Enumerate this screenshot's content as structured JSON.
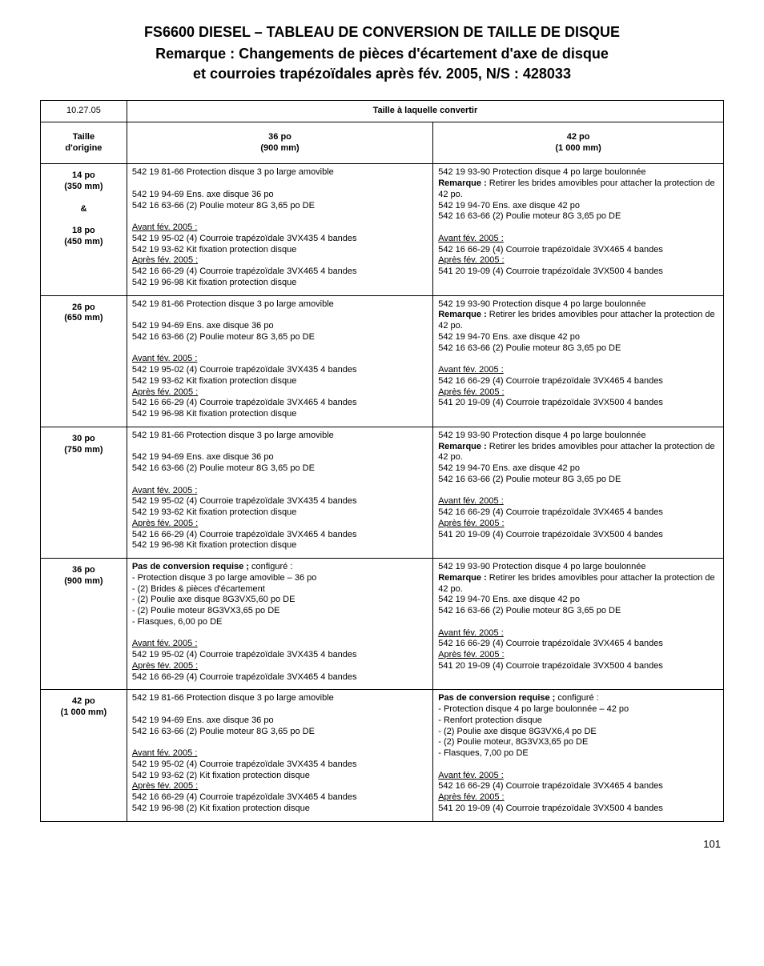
{
  "meta": {
    "title": "FS6600 DIESEL – TABLEAU DE CONVERSION DE TAILLE DE DISQUE",
    "subtitle1": "Remarque : Changements de pièces d'écartement d'axe de disque",
    "subtitle2": "et courroies trapézoïdales après fév. 2005, N/S : 428033",
    "date": "10.27.05",
    "convert_header": "Taille à laquelle convertir",
    "size_header": "Taille\nd'origine",
    "col36_header": "36 po\n(900 mm)",
    "col42_header": "42 po\n(1 000 mm)",
    "page_number": "101"
  },
  "labels": {
    "avant": "Avant fév. 2005 :",
    "apres": "Après fév. 2005 :",
    "remarque_retirer": "Remarque : ",
    "remarque_retirer_text": "Retirer les brides amovibles pour attacher la protection de 42 po.",
    "pas_conv": "Pas de conversion requise ; ",
    "pas_conv_cfg": "configuré :",
    "pas_conv42_cfg": "configuré :"
  },
  "rows": [
    {
      "size": "14 po\n(350 mm)\n\n&\n\n18 po\n(450 mm)",
      "c36": {
        "l1": "542 19 81-66 Protection disque 3 po large amovible",
        "l3": "542 19 94-69 Ens. axe disque 36 po",
        "l4": "542 16 63-66 (2) Poulie moteur 8G 3,65 po DE",
        "a1": "542 19 95-02 (4) Courroie trapézoïdale 3VX435 4 bandes",
        "a2": "542 19 93-62 Kit fixation protection disque",
        "p1": "542 16 66-29 (4) Courroie trapézoïdale 3VX465 4 bandes",
        "p2": "542 19 96-98 Kit fixation protection disque"
      },
      "c42": {
        "l1": "542 19 93-90 Protection disque 4 po large boulonnée",
        "l3": "542 19 94-70 Ens. axe disque 42 po",
        "l4": "542 16 63-66 (2) Poulie moteur 8G 3,65 po DE",
        "a1": "542 16 66-29 (4) Courroie trapézoïdale 3VX465 4 bandes",
        "p1": "541 20 19-09 (4) Courroie trapézoïdale 3VX500 4 bandes"
      }
    },
    {
      "size": "26 po\n(650 mm)",
      "c36": {
        "l1": "542 19 81-66 Protection disque 3 po large amovible",
        "l3": "542 19 94-69 Ens. axe disque 36 po",
        "l4": "542 16 63-66 (2) Poulie moteur 8G 3,65 po DE",
        "a1": "542 19 95-02 (4) Courroie trapézoïdale 3VX435 4 bandes",
        "a2": "542 19 93-62 Kit fixation protection disque",
        "p1": "542 16 66-29 (4) Courroie trapézoïdale 3VX465 4 bandes",
        "p2": "542 19 96-98 Kit fixation protection disque"
      },
      "c42": {
        "l1": "542 19 93-90 Protection disque 4 po large boulonnée",
        "l3": "542 19 94-70 Ens. axe disque 42 po",
        "l4": "542 16 63-66 (2) Poulie moteur 8G 3,65 po DE",
        "a1": "542 16 66-29 (4) Courroie trapézoïdale 3VX465 4 bandes",
        "p1": "541 20 19-09 (4) Courroie trapézoïdale 3VX500 4 bandes"
      }
    },
    {
      "size": "30 po\n(750 mm)",
      "c36": {
        "l1": "542 19 81-66 Protection disque 3 po large amovible",
        "l3": "542 19 94-69 Ens. axe disque 36 po",
        "l4": "542 16 63-66 (2) Poulie moteur 8G 3,65 po DE",
        "a1": "542 19 95-02 (4) Courroie trapézoïdale 3VX435 4 bandes",
        "a2": "542 19 93-62 Kit fixation protection disque",
        "p1": "542 16 66-29 (4) Courroie trapézoïdale 3VX465 4 bandes",
        "p2": "542 19 96-98 Kit fixation protection disque"
      },
      "c42": {
        "l1": "542 19 93-90 Protection disque 4 po large boulonnée",
        "l3": "542 19 94-70 Ens. axe disque 42 po",
        "l4": "542 16 63-66 (2) Poulie moteur 8G 3,65 po DE",
        "a1": "542 16 66-29 (4) Courroie trapézoïdale 3VX465 4 bandes",
        "p1": "541 20 19-09 (4) Courroie trapézoïdale 3VX500 4 bandes"
      }
    },
    {
      "size": "36 po\n(900 mm)",
      "c36_conf": {
        "b1": "- Protection disque 3 po large amovible – 36 po",
        "b2": "- (2) Brides & pièces d'écartement",
        "b3": "- (2) Poulie axe disque 8G3VX5,60 po DE",
        "b4": "- (2) Poulie moteur 8G3VX3,65 po DE",
        "b5": "- Flasques, 6,00 po DE",
        "a1": "542 19 95-02 (4) Courroie trapézoïdale 3VX435 4 bandes",
        "p1": "542 16 66-29 (4) Courroie trapézoïdale 3VX465 4 bandes"
      },
      "c42": {
        "l1": "542 19 93-90 Protection disque 4 po large boulonnée",
        "l3": "542 19 94-70 Ens. axe disque 42 po",
        "l4": "542 16 63-66 (2) Poulie moteur 8G 3,65 po DE",
        "a1": "542 16 66-29 (4) Courroie trapézoïdale 3VX465 4 bandes",
        "p1": "541 20 19-09 (4) Courroie trapézoïdale 3VX500 4 bandes"
      }
    },
    {
      "size": "42 po\n(1 000 mm)",
      "c36": {
        "l1": "542 19 81-66 Protection disque 3 po large amovible",
        "l3": "542 19 94-69 Ens. axe disque 36 po",
        "l4": "542 16 63-66 (2) Poulie moteur 8G 3,65 po DE",
        "a1": "542 19 95-02 (4) Courroie trapézoïdale 3VX435 4 bandes",
        "a2": "542 19 93-62 (2) Kit fixation protection disque",
        "p1": "542 16 66-29 (4) Courroie trapézoïdale 3VX465 4 bandes",
        "p2": "542 19 96-98 (2) Kit fixation protection disque"
      },
      "c42_conf": {
        "b1": "- Protection disque 4 po large boulonnée – 42 po",
        "b2": "- Renfort protection disque",
        "b3": "- (2) Poulie axe disque 8G3VX6,4 po DE",
        "b4": "- (2) Poulie moteur, 8G3VX3,65 po DE",
        "b5": "- Flasques, 7,00 po DE",
        "a1": "542 16 66-29 (4) Courroie trapézoïdale 3VX465 4 bandes",
        "p1": "541 20 19-09 (4) Courroie trapézoïdale 3VX500 4 bandes"
      }
    }
  ]
}
